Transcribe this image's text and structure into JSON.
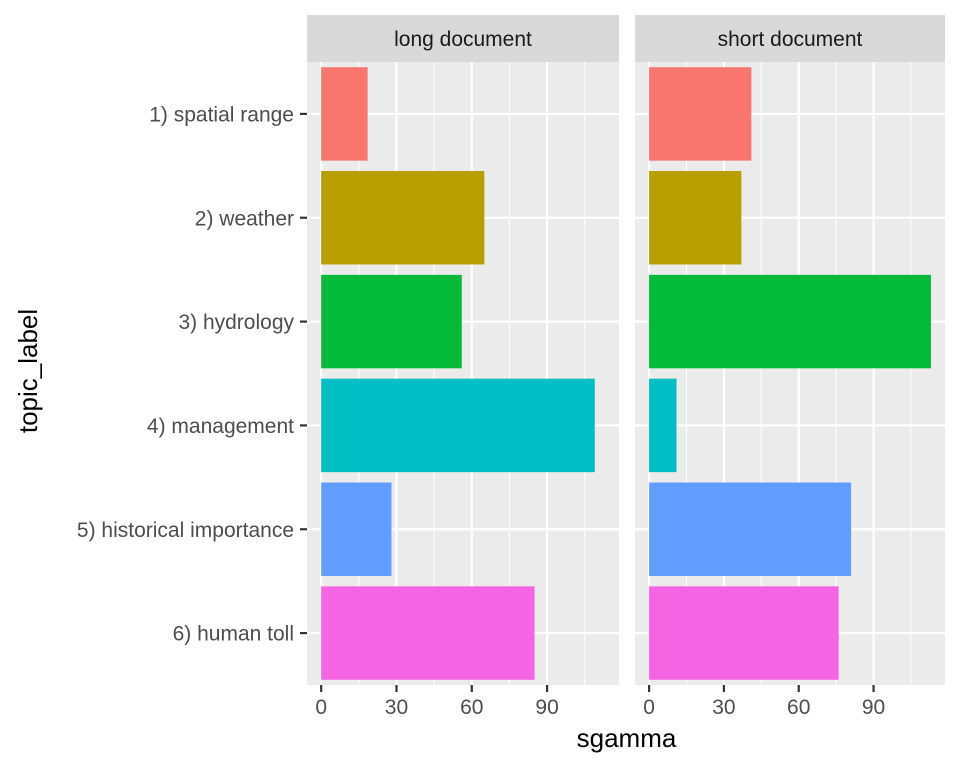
{
  "chart_data": {
    "type": "bar",
    "orientation": "horizontal",
    "facets": [
      "long document",
      "short document"
    ],
    "categories": [
      "1) spatial range",
      "2) weather",
      "3) hydrology",
      "4) management",
      "5) historical importance",
      "6) human toll"
    ],
    "series": [
      {
        "facet": "long document",
        "values": [
          18.5,
          65,
          56,
          109,
          28,
          85
        ]
      },
      {
        "facet": "short document",
        "values": [
          41,
          37,
          113,
          11,
          81,
          76
        ]
      }
    ],
    "colors": [
      "#F8766D",
      "#B79F00",
      "#00BA38",
      "#00BFC4",
      "#619CFF",
      "#F564E3"
    ],
    "xlabel": "sgamma",
    "ylabel": "topic_label",
    "xlim": [
      -5.65,
      118.65
    ],
    "xticks": [
      0,
      30,
      60,
      90
    ],
    "xtick_labels": [
      "0",
      "30",
      "60",
      "90"
    ],
    "grid": true,
    "legend": "none"
  }
}
